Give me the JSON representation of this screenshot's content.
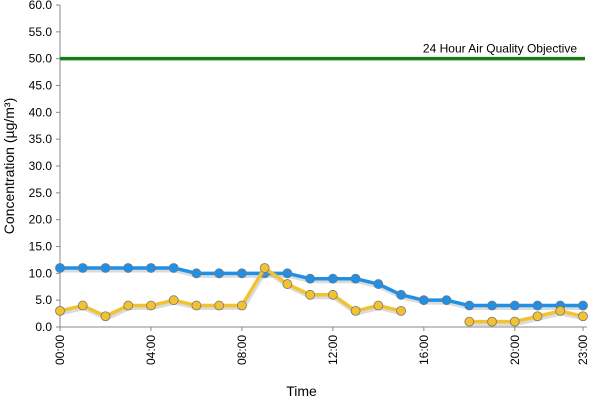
{
  "chart_data": {
    "type": "line",
    "xlabel": "Time",
    "ylabel": "Concentration (µg/m³)",
    "ylim": [
      0,
      60
    ],
    "yticks": [
      "0.0",
      "5.0",
      "10.0",
      "15.0",
      "20.0",
      "25.0",
      "30.0",
      "35.0",
      "40.0",
      "45.0",
      "50.0",
      "55.0",
      "60.0"
    ],
    "x": [
      0,
      1,
      2,
      3,
      4,
      5,
      6,
      7,
      8,
      9,
      10,
      11,
      12,
      13,
      14,
      15,
      16,
      17,
      18,
      19,
      20,
      21,
      22,
      23
    ],
    "xticks": [
      {
        "x": 0,
        "label": "00:00"
      },
      {
        "x": 4,
        "label": "04:00"
      },
      {
        "x": 8,
        "label": "08:00"
      },
      {
        "x": 12,
        "label": "12:00"
      },
      {
        "x": 16,
        "label": "16:00"
      },
      {
        "x": 20,
        "label": "20:00"
      },
      {
        "x": 23,
        "label": "23:00"
      }
    ],
    "grid": false,
    "series": [
      {
        "color": "#1E90E8",
        "marker": "circle",
        "values": [
          11,
          11,
          11,
          11,
          11,
          11,
          10,
          10,
          10,
          10,
          10,
          9,
          9,
          9,
          8,
          6,
          5,
          5,
          4,
          4,
          4,
          4,
          4,
          4
        ]
      },
      {
        "color": "#F2C230",
        "marker": "circle",
        "values": [
          3,
          4,
          2,
          4,
          4,
          5,
          4,
          4,
          4,
          11,
          8,
          6,
          6,
          3,
          4,
          3,
          null,
          null,
          1,
          1,
          1,
          2,
          3,
          2
        ]
      }
    ],
    "reference_lines": [
      {
        "value": 50,
        "label": "24 Hour Air Quality Objective",
        "color": "#1A7A1A"
      }
    ]
  }
}
